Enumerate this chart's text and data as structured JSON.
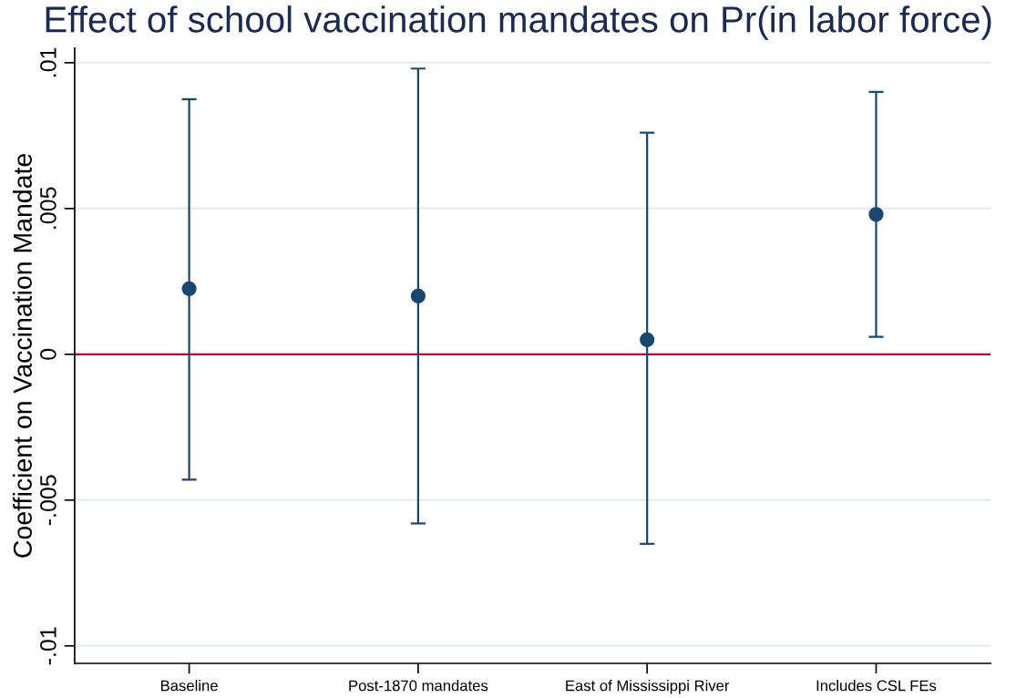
{
  "chart_data": {
    "type": "scatter",
    "title": "Effect of school vaccination mandates on Pr(in labor force)",
    "ylabel": "Coefficient on Vaccination Mandate",
    "categories": [
      "Baseline",
      "Post-1870 mandates",
      "East of Mississippi River",
      "Includes CSL FEs"
    ],
    "values": [
      0.00225,
      0.002,
      0.0005,
      0.0048
    ],
    "errors": [
      [
        -0.0043,
        0.00875
      ],
      [
        -0.0058,
        0.0098
      ],
      [
        -0.0065,
        0.0076
      ],
      [
        0.0006,
        0.009
      ]
    ],
    "color": "#1a476f",
    "marker": "circle",
    "ylim": [
      -0.0106,
      0.0105
    ],
    "yticks": [
      {
        "value": -0.01,
        "label": "-.01"
      },
      {
        "value": -0.005,
        "label": "-.005"
      },
      0,
      {
        "value": 0.005,
        "label": ".005"
      },
      {
        "value": 0.01,
        "label": ".01"
      }
    ],
    "grid": "y",
    "ref_lines": [
      {
        "axis": "y",
        "value": 0,
        "color": "#c10534"
      }
    ]
  }
}
